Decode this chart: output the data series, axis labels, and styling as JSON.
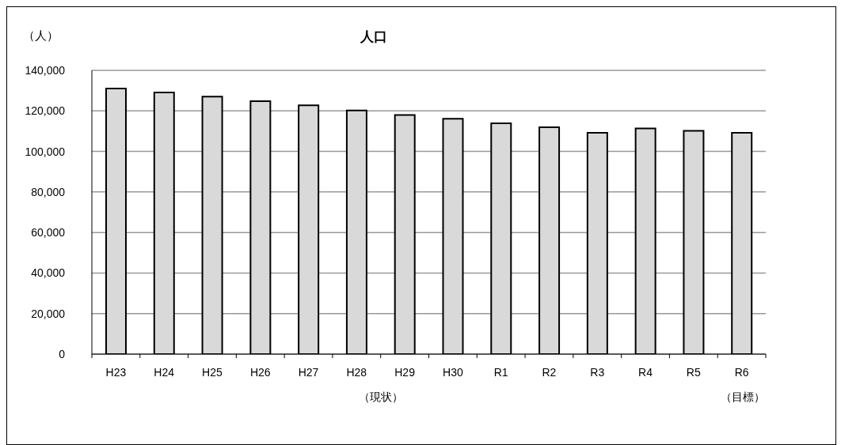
{
  "chart_data": {
    "type": "bar",
    "title": "人口",
    "ylabel": "（人）",
    "categories": [
      "H23",
      "H24",
      "H25",
      "H26",
      "H27",
      "H28",
      "H29",
      "H30",
      "R1",
      "R2",
      "R3",
      "R4",
      "R5",
      "R6"
    ],
    "values": [
      131000,
      129100,
      127000,
      124800,
      122700,
      120200,
      118000,
      116100,
      113900,
      111900,
      109200,
      111300,
      110200,
      109200
    ],
    "color": "#d9d9d9",
    "ylim": [
      0,
      140000
    ],
    "yticks": [
      0,
      {
        "value": 20000,
        "label": "20,000"
      },
      {
        "value": 40000,
        "label": "40,000"
      },
      {
        "value": 60000,
        "label": "60,000"
      },
      {
        "value": 80000,
        "label": "80,000"
      },
      {
        "value": 100000,
        "label": "100,000"
      },
      {
        "value": 120000,
        "label": "120,000"
      },
      {
        "value": 140000,
        "label": "140,000"
      }
    ],
    "grid": "y",
    "annotations": [
      "（現状）",
      "（目標）"
    ]
  }
}
